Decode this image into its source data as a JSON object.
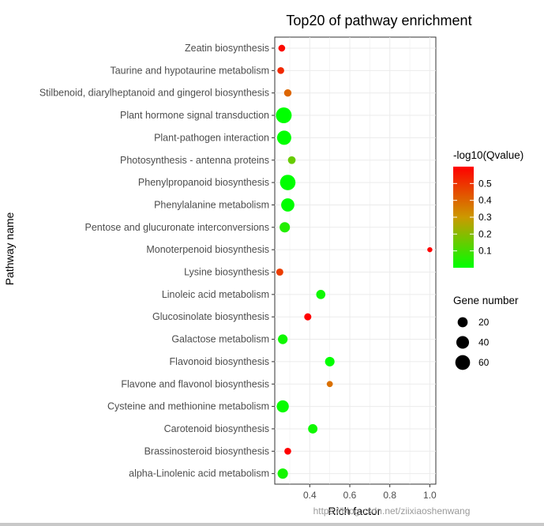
{
  "chart_data": {
    "type": "scatter",
    "title": "Top20 of pathway enrichment",
    "xlabel": "Rich factor",
    "ylabel": "Pathway name",
    "xlim": [
      0.225,
      1.03
    ],
    "xticks": [
      0.4,
      0.6,
      0.8,
      1.0
    ],
    "xtick_labels": [
      "0.4",
      "0.6",
      "0.8",
      "1.0"
    ],
    "grid": true,
    "points": [
      {
        "pathway": "Zeatin biosynthesis",
        "rich_factor": 0.26,
        "neg_log10_q": 0.58,
        "gene_number": 5
      },
      {
        "pathway": "Taurine and hypotaurine metabolism",
        "rich_factor": 0.255,
        "neg_log10_q": 0.52,
        "gene_number": 5
      },
      {
        "pathway": "Stilbenoid, diarylheptanoid and gingerol biosynthesis",
        "rich_factor": 0.29,
        "neg_log10_q": 0.4,
        "gene_number": 7
      },
      {
        "pathway": "Plant hormone signal transduction",
        "rich_factor": 0.27,
        "neg_log10_q": 0.0,
        "gene_number": 72
      },
      {
        "pathway": "Plant-pathogen interaction",
        "rich_factor": 0.272,
        "neg_log10_q": 0.0,
        "gene_number": 55
      },
      {
        "pathway": "Photosynthesis - antenna proteins",
        "rich_factor": 0.31,
        "neg_log10_q": 0.15,
        "gene_number": 8
      },
      {
        "pathway": "Phenylpropanoid biosynthesis",
        "rich_factor": 0.29,
        "neg_log10_q": 0.0,
        "gene_number": 68
      },
      {
        "pathway": "Phenylalanine metabolism",
        "rich_factor": 0.29,
        "neg_log10_q": 0.0,
        "gene_number": 45
      },
      {
        "pathway": "Pentose and glucuronate interconversions",
        "rich_factor": 0.275,
        "neg_log10_q": 0.05,
        "gene_number": 22
      },
      {
        "pathway": "Monoterpenoid biosynthesis",
        "rich_factor": 1.0,
        "neg_log10_q": 0.6,
        "gene_number": 1
      },
      {
        "pathway": "Lysine biosynthesis",
        "rich_factor": 0.25,
        "neg_log10_q": 0.48,
        "gene_number": 6
      },
      {
        "pathway": "Linoleic acid metabolism",
        "rich_factor": 0.455,
        "neg_log10_q": 0.02,
        "gene_number": 15
      },
      {
        "pathway": "Glucosinolate biosynthesis",
        "rich_factor": 0.39,
        "neg_log10_q": 0.6,
        "gene_number": 6
      },
      {
        "pathway": "Galactose metabolism",
        "rich_factor": 0.265,
        "neg_log10_q": 0.02,
        "gene_number": 18
      },
      {
        "pathway": "Flavonoid biosynthesis",
        "rich_factor": 0.5,
        "neg_log10_q": 0.0,
        "gene_number": 17
      },
      {
        "pathway": "Flavone and flavonol biosynthesis",
        "rich_factor": 0.5,
        "neg_log10_q": 0.38,
        "gene_number": 3
      },
      {
        "pathway": "Cysteine and methionine metabolism",
        "rich_factor": 0.265,
        "neg_log10_q": 0.01,
        "gene_number": 35
      },
      {
        "pathway": "Carotenoid biosynthesis",
        "rich_factor": 0.415,
        "neg_log10_q": 0.02,
        "gene_number": 16
      },
      {
        "pathway": "Brassinosteroid biosynthesis",
        "rich_factor": 0.29,
        "neg_log10_q": 0.6,
        "gene_number": 5
      },
      {
        "pathway": "alpha-Linolenic acid metabolism",
        "rich_factor": 0.265,
        "neg_log10_q": 0.03,
        "gene_number": 22
      }
    ],
    "color_legend": {
      "title": "-log10(Qvalue)",
      "range": [
        0.0,
        0.6
      ],
      "ticks": [
        0.5,
        0.4,
        0.3,
        0.2,
        0.1
      ],
      "tick_labels": [
        "0.5",
        "0.4",
        "0.3",
        "0.2",
        "0.1"
      ],
      "low_color": "#00ff00",
      "mid_color": "#cc9900",
      "high_color": "#ff0000"
    },
    "size_legend": {
      "title": "Gene number",
      "values": [
        20,
        40,
        60
      ],
      "labels": [
        "20",
        "40",
        "60"
      ],
      "max_gene_number": 72
    }
  },
  "watermark": "https://blog.csdn.net/ziixiaoshenwang"
}
